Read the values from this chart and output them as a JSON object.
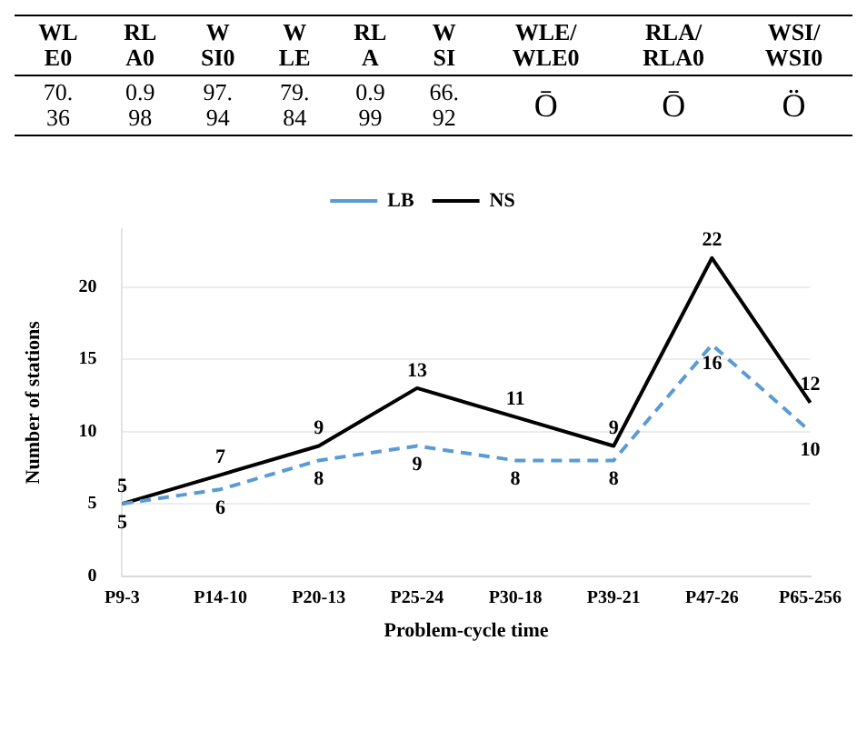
{
  "chart_data": [
    {
      "type": "other",
      "categories": [
        "WL\nE0",
        "RL\nA0",
        "W\nSI0",
        "W\nLE",
        "RL\nA",
        "W\nSI",
        "WLE/\nWLE0",
        "RLA/\nRLA0",
        "WSI/\nWSI0"
      ],
      "cell_labels": [
        [
          "70.\n36",
          "0.9\n98",
          "97.\n94",
          "79.\n84",
          "0.9\n99",
          "66.\n92",
          "Ō",
          "Ō",
          "Ö"
        ]
      ]
    },
    {
      "type": "line",
      "xlabel": "Problem-cycle time",
      "ylabel": "Number of stations",
      "categories": [
        "P9-3",
        "P14-10",
        "P20-13",
        "P25-24",
        "P30-18",
        "P39-21",
        "P47-26",
        "P65-256"
      ],
      "series": [
        {
          "name": "LB",
          "color": "#5b9bd5",
          "line_style": "dashed",
          "values": [
            5,
            6,
            8,
            9,
            8,
            8,
            16,
            10
          ]
        },
        {
          "name": "NS",
          "color": "#000000",
          "line_style": "solid",
          "values": [
            5,
            7,
            9,
            13,
            11,
            9,
            22,
            12
          ]
        }
      ],
      "ylim": [
        0,
        24
      ],
      "yticks": [
        0,
        5,
        10,
        15,
        20
      ],
      "grid": "y",
      "legend": "top",
      "marker": "none",
      "data_labels": true
    }
  ]
}
